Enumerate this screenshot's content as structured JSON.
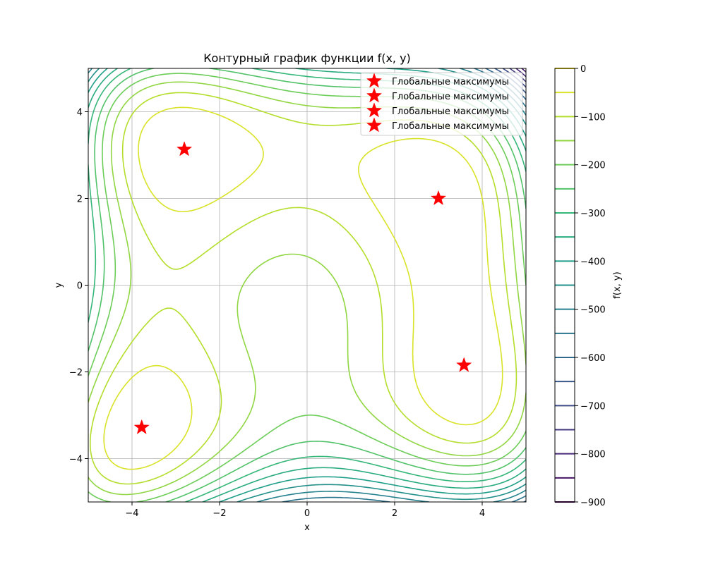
{
  "chart_data": {
    "type": "contour",
    "title": "Контурный график функции f(x, y)",
    "xlabel": "x",
    "ylabel": "y",
    "xlim": [
      -5,
      5
    ],
    "ylim": [
      -5,
      5
    ],
    "x_ticks": [
      -4,
      -2,
      0,
      2,
      4
    ],
    "y_ticks": [
      -4,
      -2,
      0,
      2,
      4
    ],
    "grid": true,
    "colormap": "viridis",
    "contour_levels": [
      -900,
      -850,
      -800,
      -750,
      -700,
      -650,
      -600,
      -550,
      -500,
      -450,
      -400,
      -350,
      -300,
      -250,
      -200,
      -150,
      -100,
      -50,
      0
    ],
    "colorbar": {
      "label": "f(x, y)",
      "min": -900,
      "max": 0,
      "ticks": [
        0,
        -100,
        -200,
        -300,
        -400,
        -500,
        -600,
        -700,
        -800,
        -900
      ]
    },
    "series": [
      {
        "name": "Глобальные максимумы",
        "x": 3.0,
        "y": 2.0,
        "marker": "star",
        "color": "#ff0000"
      },
      {
        "name": "Глобальные максимумы",
        "x": -2.805,
        "y": 3.131,
        "marker": "star",
        "color": "#ff0000"
      },
      {
        "name": "Глобальные максимумы",
        "x": -3.779,
        "y": -3.283,
        "marker": "star",
        "color": "#ff0000"
      },
      {
        "name": "Глобальные максимумы",
        "x": 3.584,
        "y": -1.848,
        "marker": "star",
        "color": "#ff0000"
      }
    ],
    "legend": {
      "position": "top-right",
      "entries": [
        "Глобальные максимумы",
        "Глобальные максимумы",
        "Глобальные максимумы",
        "Глобальные максимумы"
      ]
    }
  }
}
